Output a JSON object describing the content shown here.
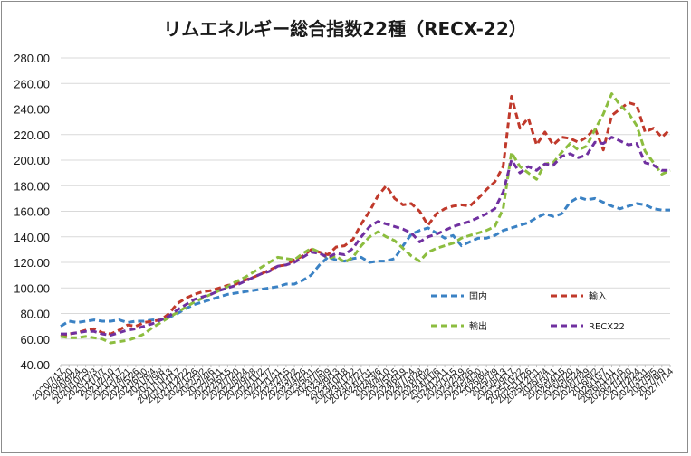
{
  "chart_data": {
    "type": "line",
    "title": "リムエネルギー総合指数22種（RECX-22）",
    "xlabel": "",
    "ylabel": "",
    "ylim": [
      40,
      280
    ],
    "yticks": [
      "40.00",
      "60.00",
      "80.00",
      "100.00",
      "120.00",
      "140.00",
      "160.00",
      "180.00",
      "200.00",
      "220.00",
      "240.00",
      "260.00",
      "280.00"
    ],
    "grid": "horizontal",
    "legend_position": "inside-lower-right",
    "x": [
      "2020/7/17",
      "2020/8/20",
      "2020/9/24",
      "2020/10/29",
      "2020/12/3",
      "2021/1/7",
      "2021/2/10",
      "2021/3/17",
      "2021/4/21",
      "2021/5/26",
      "2021/6/30",
      "2021/8/4",
      "2021/9/8",
      "2021/10/13",
      "2021/11/17",
      "2021/12/22",
      "2022/1/26",
      "2022/3/2",
      "2022/4/6",
      "2022/5/11",
      "2022/6/15",
      "2022/7/20",
      "2022/8/24",
      "2022/9/28",
      "2022/11/2",
      "2022/12/7",
      "2023/1/11",
      "2023/2/15",
      "2023/3/22",
      "2023/4/26",
      "2023/5/31",
      "2023/7/5",
      "2023/8/9",
      "2023/9/13",
      "2023/10/18",
      "2023/11/22",
      "2023/12/27",
      "2024/1/31",
      "2024/3/6",
      "2024/4/10",
      "2024/5/15",
      "2024/6/19",
      "2024/7/24",
      "2024/8/28",
      "2024/10/2",
      "2024/11/6",
      "2024/12/11",
      "2025/1/15",
      "2025/2/19",
      "2025/3/26",
      "2025/4/30",
      "2025/6/4",
      "2025/7/9",
      "2025/8/13",
      "2025/9/17",
      "2025/10/22",
      "2025/11/26",
      "2025/12/31",
      "2026/2/4",
      "2026/3/11",
      "2026/4/15",
      "2026/5/20",
      "2026/6/24",
      "2026/7/29",
      "2026/9/2",
      "2026/10/7",
      "2026/11/11",
      "2026/12/16",
      "2027/1/20",
      "2027/2/24",
      "2027/3/31",
      "2027/5/5",
      "2027/6/9",
      "2027/7/14"
    ],
    "xtick_labels": [
      "2020/7/17",
      "2020/8/20",
      "2020/9/24",
      "2020/10/29",
      "2020/12/3",
      "2021/1/7",
      "2021/2/10",
      "2021/3/17",
      "2021/4/21",
      "2021/5/26",
      "2021/6/30",
      "2021/8/4",
      "2021/9/8",
      "2021/10/13",
      "2021/11/17",
      "2021/12/22",
      "2022/1/26",
      "2022/3/2",
      "2022/4/6",
      "2022/5/11",
      "2022/6/15",
      "2022/7/20",
      "2022/8/24",
      "2022/9/28",
      "2022/11/2",
      "2022/12/7",
      "2023/1/11",
      "2023/2/15",
      "2023/3/22",
      "2023/4/26",
      "2023/5/31",
      "2023/7/5",
      "2023/8/9",
      "2023/9/13",
      "2023/10/18",
      "2023/11/22",
      "2023/12/27",
      "2024/1/31",
      "2024/3/6",
      "2024/4/10",
      "2024/5/15",
      "2024/6/19",
      "2024/7/24",
      "2024/8/28",
      "2024/10/2",
      "2024/11/6",
      "2024/12/11",
      "2025/1/15",
      "2025/2/19",
      "2025/3/26",
      "2025/4/30",
      "2025/6/4",
      "2025/7/9",
      "2025/8/13",
      "2025/9/17",
      "2025/10/22",
      "2025/11/26",
      "2025/12/31",
      "2026/2/4",
      "2026/3/11",
      "2026/4/15",
      "2026/5/20",
      "2026/6/24",
      "2026/7/29",
      "2026/9/2",
      "2026/10/7",
      "2026/11/11",
      "2026/12/16",
      "2027/1/20",
      "2027/2/24",
      "2027/3/31",
      "2027/5/5",
      "2027/6/9",
      "2027/7/14"
    ],
    "series": [
      {
        "name": "国内",
        "color": "#3b82c4",
        "line_style": "dashed",
        "values": [
          70,
          74,
          73,
          74,
          75,
          74,
          74,
          75,
          73,
          74,
          74,
          75,
          75,
          77,
          80,
          84,
          87,
          89,
          91,
          93,
          95,
          96,
          97,
          98,
          99,
          100,
          101,
          103,
          103,
          106,
          110,
          118,
          124,
          122,
          121,
          123,
          124,
          120,
          121,
          121,
          123,
          133,
          142,
          145,
          147,
          143,
          139,
          141,
          133,
          136,
          139,
          139,
          141,
          145,
          147,
          149,
          151,
          155,
          158,
          156,
          158,
          167,
          171,
          169,
          170,
          167,
          164,
          162,
          164,
          166,
          165,
          162,
          161,
          161
        ]
      },
      {
        "name": "輸入",
        "color": "#c0392b",
        "line_style": "dashed",
        "values": [
          62,
          64,
          65,
          67,
          68,
          65,
          64,
          67,
          71,
          70,
          73,
          74,
          75,
          80,
          88,
          92,
          95,
          97,
          98,
          100,
          102,
          103,
          106,
          108,
          111,
          114,
          117,
          118,
          122,
          125,
          130,
          128,
          126,
          132,
          133,
          138,
          150,
          160,
          172,
          180,
          170,
          165,
          166,
          160,
          149,
          158,
          162,
          164,
          165,
          164,
          170,
          177,
          183,
          195,
          250,
          225,
          233,
          212,
          222,
          212,
          218,
          217,
          214,
          218,
          225,
          208,
          235,
          240,
          245,
          243,
          222,
          225,
          218,
          224
        ]
      },
      {
        "name": "輸出",
        "color": "#8cbd3f",
        "line_style": "dashed",
        "values": [
          62,
          61,
          61,
          62,
          61,
          60,
          57,
          58,
          59,
          61,
          64,
          69,
          73,
          77,
          81,
          85,
          89,
          92,
          95,
          98,
          101,
          105,
          108,
          112,
          116,
          120,
          124,
          123,
          122,
          127,
          131,
          128,
          123,
          125,
          120,
          124,
          133,
          140,
          144,
          140,
          137,
          131,
          125,
          121,
          128,
          131,
          133,
          135,
          139,
          141,
          143,
          145,
          148,
          162,
          206,
          195,
          190,
          185,
          197,
          198,
          206,
          213,
          208,
          211,
          224,
          236,
          252,
          243,
          237,
          227,
          207,
          198,
          189,
          192
        ]
      },
      {
        "name": "RECX22",
        "color": "#7030a0",
        "line_style": "dashed",
        "values": [
          64,
          64,
          65,
          66,
          66,
          64,
          63,
          65,
          67,
          68,
          70,
          72,
          75,
          78,
          83,
          87,
          91,
          93,
          95,
          98,
          100,
          102,
          105,
          108,
          111,
          113,
          117,
          118,
          120,
          124,
          128,
          127,
          124,
          127,
          126,
          131,
          140,
          148,
          152,
          150,
          148,
          146,
          143,
          136,
          140,
          142,
          145,
          148,
          150,
          152,
          155,
          158,
          162,
          175,
          200,
          190,
          195,
          192,
          197,
          196,
          203,
          205,
          202,
          204,
          214,
          213,
          218,
          215,
          212,
          213,
          198,
          196,
          192,
          192
        ]
      }
    ]
  }
}
